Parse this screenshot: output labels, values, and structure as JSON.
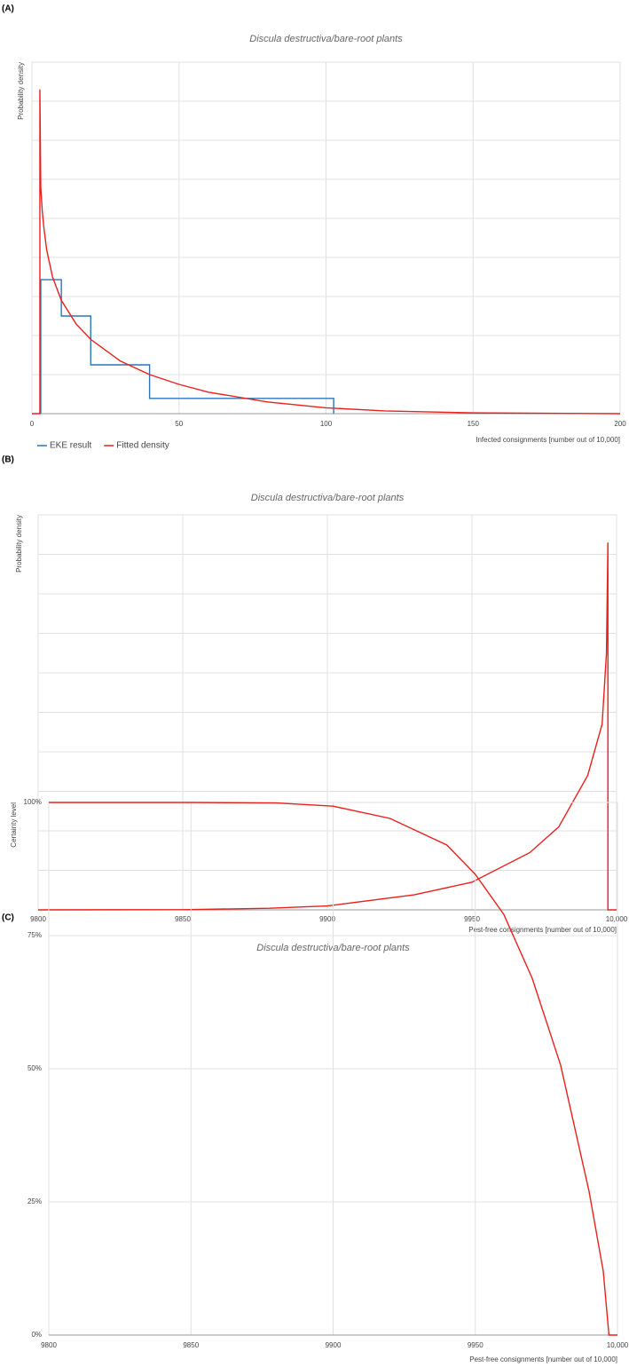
{
  "chart_data": [
    {
      "type": "line",
      "panel_label": "(A)",
      "title": "Discula destructiva/bare-root plants",
      "y_label": "Probability density",
      "x_label": "Infected consignments [number out of 10,000]",
      "xlim": [
        0,
        200
      ],
      "xticks": [
        0,
        50,
        100,
        150,
        200
      ],
      "ylim": [
        0,
        9
      ],
      "yticks": [
        0,
        1,
        2,
        3,
        4,
        5,
        6,
        7,
        8,
        9
      ],
      "ytick_labels": false,
      "grid": true,
      "legend": "bottom-left",
      "series": [
        {
          "name": "EKE result",
          "color": "#2e75b6",
          "x": [
            3,
            3,
            10,
            10,
            20,
            20,
            40,
            40,
            102.6,
            102.6
          ],
          "values": [
            0,
            3.43,
            3.43,
            2.5,
            2.5,
            1.25,
            1.25,
            0.39,
            0.39,
            0
          ]
        },
        {
          "name": "Fitted density",
          "color": "#e8211d",
          "x": [
            0,
            2.7,
            2.7,
            3,
            3.5,
            4,
            5,
            7,
            10,
            15,
            20,
            30,
            40,
            50,
            60,
            80,
            100,
            120,
            150,
            200
          ],
          "values": [
            0,
            0,
            8.3,
            5.8,
            5.2,
            4.8,
            4.2,
            3.5,
            2.9,
            2.3,
            1.9,
            1.35,
            1.0,
            0.75,
            0.55,
            0.3,
            0.15,
            0.07,
            0.02,
            0
          ]
        }
      ]
    },
    {
      "type": "line",
      "panel_label": "(B)",
      "title": "Discula destructiva/bare-root plants",
      "y_label": "Probability density",
      "x_label": "Pest-free consignments [number out of 10,000]",
      "xlim": [
        9800,
        10000
      ],
      "xticks": [
        9800,
        9850,
        9900,
        9950,
        {
          "value": 10000,
          "label": "10,000"
        }
      ],
      "ylim": [
        0,
        10
      ],
      "yticks": [
        0,
        1,
        2,
        3,
        4,
        5,
        6,
        7,
        8,
        9,
        10
      ],
      "ytick_labels": false,
      "grid": true,
      "series": [
        {
          "name": "Fitted density",
          "color": "#e8211d",
          "x": [
            9800,
            9850,
            9880,
            9900,
            9930,
            9950,
            9970,
            9980,
            9990,
            9995,
            9996.5,
            9997,
            9997,
            10000
          ],
          "values": [
            0,
            0.005,
            0.04,
            0.1,
            0.38,
            0.7,
            1.45,
            2.1,
            3.4,
            4.7,
            6.5,
            9.3,
            0,
            0
          ]
        }
      ]
    },
    {
      "type": "line",
      "panel_label": "(C)",
      "title": "Discula destructiva/bare-root plants",
      "y_label": "Certainty level",
      "x_label": "Pest-free consignments [number out of 10,000]",
      "xlim": [
        9800,
        10000
      ],
      "xticks": [
        9800,
        9850,
        9900,
        9950,
        {
          "value": 10000,
          "label": "10,000"
        }
      ],
      "ylim": [
        0,
        100
      ],
      "yticks": [
        {
          "value": 0,
          "label": "0%"
        },
        {
          "value": 25,
          "label": "25%"
        },
        {
          "value": 50,
          "label": "50%"
        },
        {
          "value": 75,
          "label": "75%"
        },
        {
          "value": 100,
          "label": "100%"
        }
      ],
      "grid": true,
      "series": [
        {
          "name": "Certainty level",
          "color": "#e8211d",
          "x": [
            9800,
            9850,
            9880,
            9900,
            9920,
            9940,
            9950,
            9960,
            9970,
            9980,
            9990,
            9995,
            9997,
            10000
          ],
          "values": [
            100,
            100,
            99.9,
            99.3,
            97,
            92,
            86.5,
            79,
            67,
            50.7,
            27,
            12,
            0,
            0
          ]
        }
      ]
    }
  ]
}
